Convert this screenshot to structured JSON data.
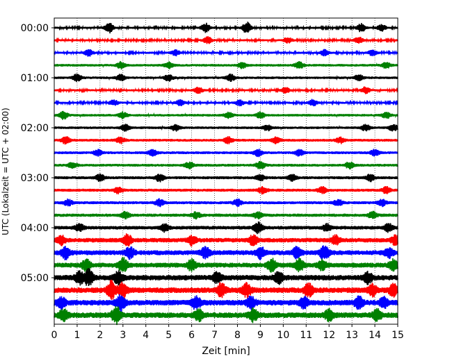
{
  "chart_data": {
    "type": "line",
    "subtype": "helicorder",
    "title": "",
    "xlabel": "Zeit  [min]",
    "ylabel": "UTC (Lokalzeit = UTC + 02:00)",
    "xlim": [
      0,
      15
    ],
    "x_ticks": [
      "0",
      "1",
      "2",
      "3",
      "4",
      "5",
      "6",
      "7",
      "8",
      "9",
      "10",
      "11",
      "12",
      "13",
      "14",
      "15"
    ],
    "y_tick_labels": [
      {
        "label": "00:00",
        "row": 0
      },
      {
        "label": "01:00",
        "row": 4
      },
      {
        "label": "02:00",
        "row": 8
      },
      {
        "label": "03:00",
        "row": 12
      },
      {
        "label": "04:00",
        "row": 16
      },
      {
        "label": "05:00",
        "row": 20
      }
    ],
    "vertical_gridlines": "dotted, every 1 min",
    "legend": "none",
    "row_minutes": 15,
    "colors": [
      "#000000",
      "#ff0000",
      "#0000ff",
      "#008000"
    ],
    "rows": [
      {
        "start": "00:00",
        "color": "#000000",
        "noise": 0.45,
        "bursts": [
          [
            2.4,
            2.2
          ],
          [
            6.6,
            2.0
          ],
          [
            8.4,
            2.5
          ],
          [
            13.4,
            1.8
          ],
          [
            14.3,
            1.4
          ]
        ]
      },
      {
        "start": "00:15",
        "color": "#ff0000",
        "noise": 0.45,
        "bursts": [
          [
            6.7,
            1.4
          ],
          [
            10.2,
            1.2
          ],
          [
            13.3,
            1.3
          ]
        ]
      },
      {
        "start": "00:30",
        "color": "#0000ff",
        "noise": 0.45,
        "bursts": [
          [
            1.5,
            1.6
          ],
          [
            5.3,
            1.2
          ],
          [
            11.8,
            1.3
          ],
          [
            13.9,
            1.2
          ]
        ]
      },
      {
        "start": "00:45",
        "color": "#008000",
        "noise": 0.55,
        "bursts": [
          [
            2.9,
            1.4
          ],
          [
            5.0,
            1.3
          ],
          [
            8.2,
            1.3
          ],
          [
            10.7,
            1.5
          ],
          [
            14.5,
            1.2
          ]
        ]
      },
      {
        "start": "01:00",
        "color": "#000000",
        "noise": 0.55,
        "bursts": [
          [
            1.0,
            1.5
          ],
          [
            2.9,
            1.4
          ],
          [
            5.0,
            1.3
          ],
          [
            7.7,
            1.4
          ],
          [
            13.3,
            1.3
          ]
        ]
      },
      {
        "start": "01:15",
        "color": "#ff0000",
        "noise": 0.45,
        "bursts": [
          [
            6.3,
            1.3
          ],
          [
            10.1,
            1.2
          ],
          [
            13.6,
            1.4
          ]
        ]
      },
      {
        "start": "01:30",
        "color": "#0000ff",
        "noise": 0.45,
        "bursts": [
          [
            2.6,
            1.3
          ],
          [
            5.5,
            1.2
          ],
          [
            8.1,
            1.2
          ],
          [
            11.3,
            1.4
          ]
        ]
      },
      {
        "start": "01:45",
        "color": "#008000",
        "noise": 0.55,
        "bursts": [
          [
            0.4,
            1.6
          ],
          [
            3.0,
            1.3
          ],
          [
            7.6,
            1.3
          ],
          [
            9.0,
            1.3
          ],
          [
            14.5,
            1.3
          ]
        ]
      },
      {
        "start": "02:00",
        "color": "#000000",
        "noise": 0.55,
        "bursts": [
          [
            3.1,
            1.5
          ],
          [
            5.3,
            1.3
          ],
          [
            9.3,
            1.2
          ],
          [
            13.6,
            1.3
          ],
          [
            14.8,
            1.4
          ]
        ]
      },
      {
        "start": "02:15",
        "color": "#ff0000",
        "noise": 0.6,
        "bursts": [
          [
            0.5,
            1.5
          ],
          [
            2.9,
            1.3
          ],
          [
            7.6,
            1.3
          ],
          [
            9.7,
            1.4
          ],
          [
            12.5,
            1.2
          ]
        ]
      },
      {
        "start": "02:30",
        "color": "#0000ff",
        "noise": 0.6,
        "bursts": [
          [
            1.9,
            1.3
          ],
          [
            4.3,
            1.3
          ],
          [
            8.9,
            1.4
          ],
          [
            10.7,
            1.3
          ],
          [
            14.0,
            1.3
          ]
        ]
      },
      {
        "start": "02:45",
        "color": "#008000",
        "noise": 0.6,
        "bursts": [
          [
            0.8,
            1.3
          ],
          [
            5.9,
            1.4
          ],
          [
            9.0,
            1.7
          ],
          [
            12.9,
            1.4
          ]
        ]
      },
      {
        "start": "03:00",
        "color": "#000000",
        "noise": 0.65,
        "bursts": [
          [
            2.0,
            1.4
          ],
          [
            4.6,
            1.5
          ],
          [
            9.0,
            1.3
          ],
          [
            10.4,
            1.3
          ],
          [
            13.8,
            1.4
          ]
        ]
      },
      {
        "start": "03:15",
        "color": "#ff0000",
        "noise": 0.65,
        "bursts": [
          [
            2.8,
            1.3
          ],
          [
            9.1,
            1.4
          ],
          [
            11.7,
            1.3
          ],
          [
            14.5,
            1.3
          ]
        ]
      },
      {
        "start": "03:30",
        "color": "#0000ff",
        "noise": 0.65,
        "bursts": [
          [
            0.6,
            1.3
          ],
          [
            4.6,
            1.4
          ],
          [
            8.0,
            1.3
          ],
          [
            12.4,
            1.3
          ],
          [
            14.3,
            1.4
          ]
        ]
      },
      {
        "start": "03:45",
        "color": "#008000",
        "noise": 0.7,
        "bursts": [
          [
            3.1,
            1.3
          ],
          [
            6.2,
            1.3
          ],
          [
            8.9,
            1.3
          ],
          [
            13.9,
            1.4
          ]
        ]
      },
      {
        "start": "04:00",
        "color": "#000000",
        "noise": 0.8,
        "bursts": [
          [
            1.1,
            1.5
          ],
          [
            4.8,
            1.5
          ],
          [
            8.9,
            2.2
          ],
          [
            11.9,
            1.5
          ],
          [
            14.6,
            1.6
          ]
        ]
      },
      {
        "start": "04:15",
        "color": "#ff0000",
        "noise": 1.0,
        "bursts": [
          [
            0.3,
            1.8
          ],
          [
            3.2,
            2.3
          ],
          [
            6.0,
            2.0
          ],
          [
            8.7,
            2.2
          ],
          [
            12.3,
            1.8
          ],
          [
            14.9,
            2.0
          ]
        ]
      },
      {
        "start": "04:30",
        "color": "#0000ff",
        "noise": 1.1,
        "bursts": [
          [
            0.5,
            2.4
          ],
          [
            3.3,
            2.2
          ],
          [
            6.6,
            2.1
          ],
          [
            9.0,
            2.5
          ],
          [
            10.6,
            2.2
          ],
          [
            11.8,
            3.0
          ],
          [
            14.6,
            2.0
          ]
        ]
      },
      {
        "start": "04:45",
        "color": "#008000",
        "noise": 1.1,
        "bursts": [
          [
            1.4,
            2.4
          ],
          [
            3.0,
            3.0
          ],
          [
            6.0,
            2.2
          ],
          [
            9.5,
            2.5
          ],
          [
            10.7,
            2.4
          ],
          [
            11.7,
            1.9
          ],
          [
            14.8,
            2.1
          ]
        ]
      },
      {
        "start": "05:00",
        "color": "#000000",
        "noise": 1.2,
        "bursts": [
          [
            1.1,
            2.4
          ],
          [
            1.5,
            3.2
          ],
          [
            2.8,
            2.5
          ],
          [
            7.1,
            2.0
          ],
          [
            9.8,
            2.3
          ],
          [
            13.7,
            2.2
          ]
        ]
      },
      {
        "start": "05:15",
        "color": "#ff0000",
        "noise": 1.25,
        "bursts": [
          [
            2.5,
            3.5
          ],
          [
            3.0,
            3.0
          ],
          [
            7.3,
            2.6
          ],
          [
            8.4,
            2.8
          ],
          [
            11.1,
            2.8
          ],
          [
            13.9,
            2.2
          ],
          [
            14.8,
            2.3
          ]
        ]
      },
      {
        "start": "05:30",
        "color": "#0000ff",
        "noise": 1.25,
        "bursts": [
          [
            0.3,
            2.3
          ],
          [
            2.9,
            3.2
          ],
          [
            6.2,
            2.6
          ],
          [
            8.6,
            2.4
          ],
          [
            10.9,
            2.3
          ],
          [
            13.3,
            2.4
          ],
          [
            14.4,
            2.0
          ]
        ]
      },
      {
        "start": "05:45",
        "color": "#008000",
        "noise": 1.25,
        "bursts": [
          [
            0.4,
            2.2
          ],
          [
            2.7,
            3.4
          ],
          [
            6.3,
            2.4
          ],
          [
            8.7,
            2.4
          ],
          [
            12.0,
            2.3
          ],
          [
            14.1,
            2.2
          ]
        ]
      }
    ]
  }
}
